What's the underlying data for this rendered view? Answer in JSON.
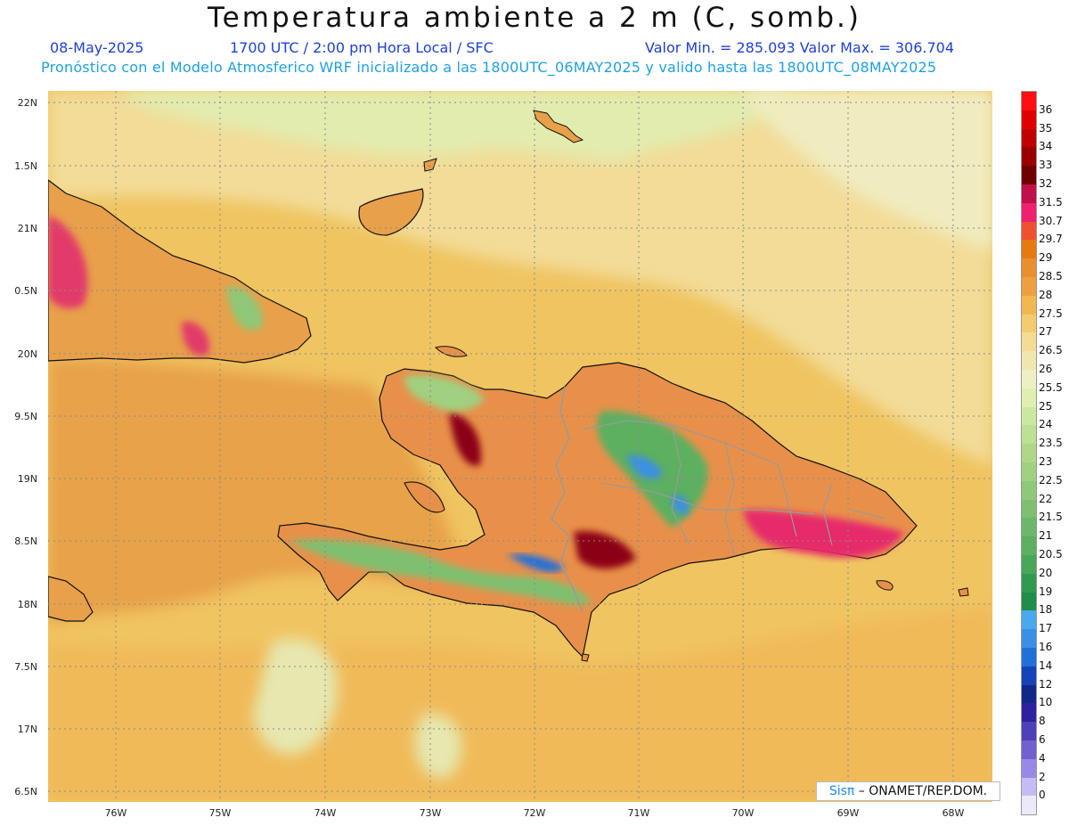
{
  "header": {
    "title": "Temperatura ambiente a 2 m (C, somb.)",
    "date": "08-May-2025",
    "time": "1700 UTC / 2:00 pm Hora Local / SFC",
    "minmax": "Valor Min. = 285.093   Valor Max. = 306.704",
    "forecast": "Pronóstico con el Modelo Atmosferico WRF inicializado a las 1800UTC_06MAY2025 y valido hasta las  1800UTC_08MAY2025"
  },
  "axes": {
    "lat_labels": [
      "22N",
      "1.5N",
      "21N",
      "0.5N",
      "20N",
      "9.5N",
      "19N",
      "8.5N",
      "18N",
      "7.5N",
      "17N",
      "6.5N"
    ],
    "lon_labels": [
      "76W",
      "75W",
      "74W",
      "73W",
      "72W",
      "71W",
      "70W",
      "69W",
      "68W"
    ]
  },
  "colorbar": {
    "labels": [
      "36",
      "35",
      "34",
      "33",
      "32",
      "31.5",
      "30.7",
      "29.7",
      "29",
      "28.5",
      "28",
      "27.5",
      "27",
      "26.5",
      "26",
      "25.5",
      "25",
      "24",
      "23.5",
      "23",
      "22.5",
      "22",
      "21.5",
      "21",
      "20.5",
      "20",
      "19",
      "18",
      "17",
      "16",
      "14",
      "12",
      "10",
      "8",
      "6",
      "4",
      "2",
      "0"
    ],
    "colors": [
      "#ff1010",
      "#e00000",
      "#c00000",
      "#9a0000",
      "#6e0000",
      "#c0104a",
      "#ef2070",
      "#ef5030",
      "#e47a10",
      "#e89030",
      "#eea040",
      "#f2b850",
      "#f4cc70",
      "#f4dc94",
      "#f0e6b0",
      "#eef0c4",
      "#e0eeb0",
      "#cce8a0",
      "#bce094",
      "#aed888",
      "#a0d080",
      "#8ec878",
      "#7ec070",
      "#6cb868",
      "#5cb060",
      "#48a858",
      "#2f9a50",
      "#1e8e48",
      "#4aa8ee",
      "#3a90e4",
      "#2070d8",
      "#1444b8",
      "#102888",
      "#3020a0",
      "#5040b8",
      "#7060d0",
      "#9a88e8",
      "#c6bcf4",
      "#eceaf8"
    ]
  },
  "footer": {
    "credit_prefix": "Sis",
    "credit_pi": "π",
    "credit_suffix": " – ONAMET/REP.DOM."
  }
}
